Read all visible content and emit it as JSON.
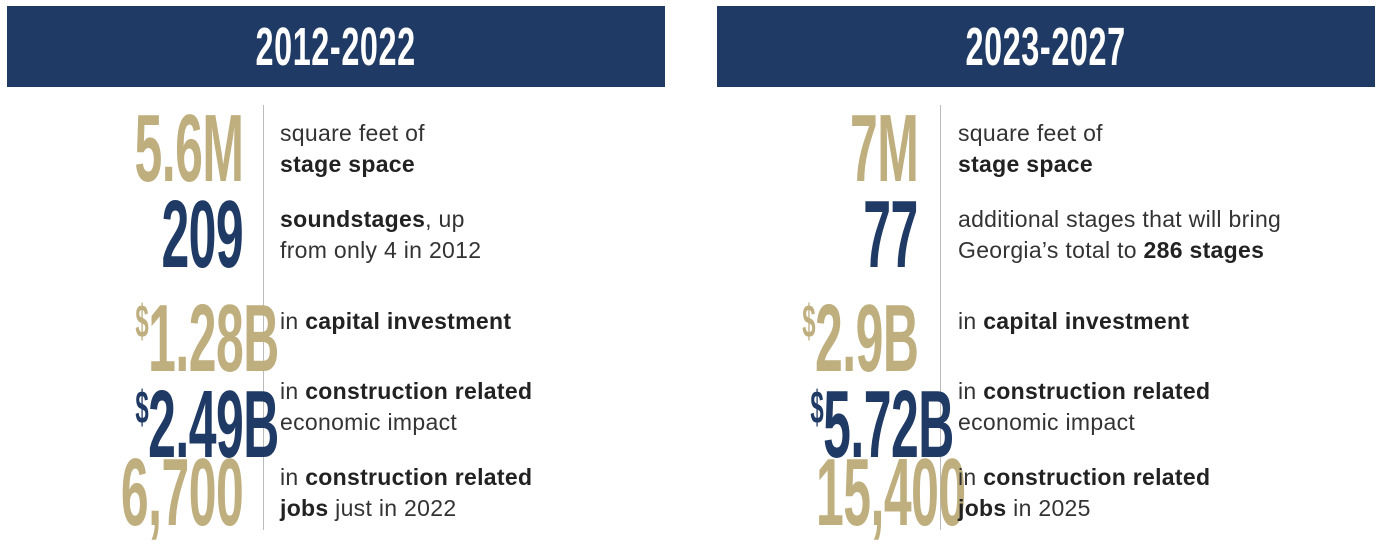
{
  "header_color": "#1f3a64",
  "panels": [
    {
      "title": "2012-2022",
      "rows": [
        {
          "figure": "5.6M",
          "color": "#bfae7e",
          "lines": [
            [
              {
                "text": "square feet of",
                "bold": false
              }
            ],
            [
              {
                "text": "stage space",
                "bold": true
              }
            ]
          ]
        },
        {
          "figure": "209",
          "color": "#1f3a64",
          "lines": [
            [
              {
                "text": "soundstages",
                "bold": true
              },
              {
                "text": ", up",
                "bold": false
              }
            ],
            [
              {
                "text": "from only 4 in 2012",
                "bold": false
              }
            ]
          ]
        },
        {
          "prefix": "$",
          "figure": "1.28B",
          "color": "#bfae7e",
          "lines": [
            [
              {
                "text": "in ",
                "bold": false
              },
              {
                "text": "capital investment",
                "bold": true
              }
            ]
          ]
        },
        {
          "prefix": "$",
          "figure": "2.49B",
          "color": "#1f3a64",
          "lines": [
            [
              {
                "text": "in ",
                "bold": false
              },
              {
                "text": "construction related",
                "bold": true
              }
            ],
            [
              {
                "text": "economic impact",
                "bold": false
              }
            ]
          ]
        },
        {
          "figure": "6,700",
          "color": "#bfae7e",
          "lines": [
            [
              {
                "text": "in ",
                "bold": false
              },
              {
                "text": "construction related",
                "bold": true
              }
            ],
            [
              {
                "text": "jobs",
                "bold": true
              },
              {
                "text": " just in 2022",
                "bold": false
              }
            ]
          ]
        }
      ]
    },
    {
      "title": "2023-2027",
      "rows": [
        {
          "figure": "7M",
          "color": "#bfae7e",
          "lines": [
            [
              {
                "text": "square feet of",
                "bold": false
              }
            ],
            [
              {
                "text": "stage space",
                "bold": true
              }
            ]
          ]
        },
        {
          "figure": "77",
          "color": "#1f3a64",
          "lines": [
            [
              {
                "text": "additional stages that will bring",
                "bold": false
              }
            ],
            [
              {
                "text": "Georgia’s total to ",
                "bold": false
              },
              {
                "text": "286 stages",
                "bold": true
              }
            ]
          ]
        },
        {
          "prefix": "$",
          "figure": "2.9B",
          "color": "#bfae7e",
          "lines": [
            [
              {
                "text": "in ",
                "bold": false
              },
              {
                "text": "capital investment",
                "bold": true
              }
            ]
          ]
        },
        {
          "prefix": "$",
          "figure": "5.72B",
          "color": "#1f3a64",
          "lines": [
            [
              {
                "text": "in ",
                "bold": false
              },
              {
                "text": "construction related",
                "bold": true
              }
            ],
            [
              {
                "text": "economic impact",
                "bold": false
              }
            ]
          ]
        },
        {
          "figure": "15,400",
          "color": "#bfae7e",
          "lines": [
            [
              {
                "text": "in ",
                "bold": false
              },
              {
                "text": "construction related",
                "bold": true
              }
            ],
            [
              {
                "text": "jobs",
                "bold": true
              },
              {
                "text": " in 2025",
                "bold": false
              }
            ]
          ]
        }
      ]
    }
  ]
}
